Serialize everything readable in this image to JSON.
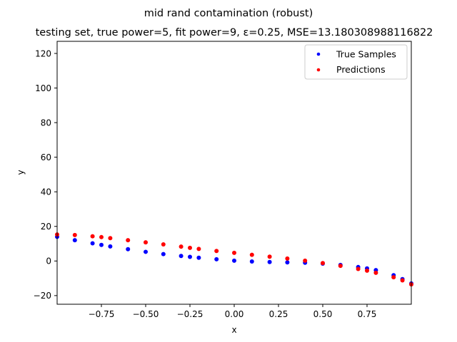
{
  "chart_data": {
    "type": "scatter",
    "title": "mid rand contamination (robust)",
    "subtitle": "testing set, true power=5, fit power=9, ε=0.25, MSE=13.180308988116822",
    "xlabel": "x",
    "ylabel": "y",
    "xlim": [
      -1.0,
      1.0
    ],
    "ylim": [
      -25,
      127
    ],
    "xticks": [
      -0.75,
      -0.5,
      -0.25,
      0.0,
      0.25,
      0.5,
      0.75
    ],
    "xtick_labels": [
      "−0.75",
      "−0.50",
      "−0.25",
      "0.00",
      "0.25",
      "0.50",
      "0.75"
    ],
    "yticks": [
      -20,
      0,
      20,
      40,
      60,
      80,
      100,
      120
    ],
    "ytick_labels": [
      "−20",
      "0",
      "20",
      "40",
      "60",
      "80",
      "100",
      "120"
    ],
    "grid": false,
    "legend": "top-right",
    "series": [
      {
        "name": "True Samples",
        "color": "#0000ff",
        "x": [
          -1.0,
          -0.9,
          -0.8,
          -0.75,
          -0.7,
          -0.6,
          -0.5,
          -0.4,
          -0.3,
          -0.25,
          -0.2,
          -0.1,
          0.0,
          0.1,
          0.2,
          0.3,
          0.4,
          0.5,
          0.6,
          0.7,
          0.75,
          0.8,
          0.9,
          0.95,
          1.0
        ],
        "y": [
          14,
          12,
          10.2,
          9.3,
          8.4,
          6.8,
          5.3,
          4,
          2.9,
          2.4,
          1.9,
          1,
          0.2,
          -0.3,
          -0.6,
          -0.8,
          -1,
          -1.5,
          -2.3,
          -3.5,
          -4.3,
          -5.3,
          -8.2,
          -10.5,
          -13
        ]
      },
      {
        "name": "Predictions",
        "color": "#ff0000",
        "x": [
          -1.0,
          -0.9,
          -0.8,
          -0.75,
          -0.7,
          -0.6,
          -0.5,
          -0.4,
          -0.3,
          -0.25,
          -0.2,
          -0.1,
          0.0,
          0.1,
          0.2,
          0.3,
          0.4,
          0.5,
          0.6,
          0.7,
          0.75,
          0.8,
          0.9,
          0.95,
          1.0
        ],
        "y": [
          15.3,
          15,
          14.3,
          13.8,
          13.2,
          12,
          10.8,
          9.6,
          8.3,
          7.6,
          7,
          5.8,
          4.7,
          3.6,
          2.5,
          1.4,
          0.2,
          -1.2,
          -2.8,
          -4.6,
          -5.6,
          -6.8,
          -9.4,
          -11.2,
          -13.5
        ]
      }
    ]
  }
}
